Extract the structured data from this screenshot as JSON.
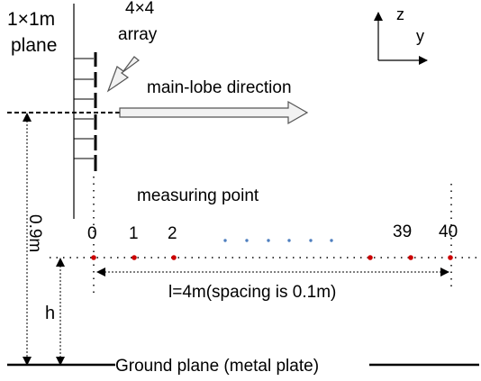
{
  "labels": {
    "plane_line1": "1×1m",
    "plane_line2": "plane",
    "array_line1": "4×4",
    "array_line2": "array",
    "axis_z": "z",
    "axis_y": "y",
    "main_lobe": "main-lobe direction",
    "measuring_point": "measuring point",
    "height_total": "0.9m",
    "height_h": "h",
    "distance": "l=4m(spacing is 0.1m)",
    "ground": "Ground plane (metal plate)"
  },
  "points": {
    "index_labels": [
      "0",
      "1",
      "2",
      "39",
      "40"
    ],
    "count_label_first": "0",
    "count_label_last": "40"
  },
  "colors": {
    "point_red": "#cc0000",
    "ellipsis_blue": "#4f7fbf",
    "arrow_fill": "#f2f2f2",
    "line": "#000000"
  }
}
